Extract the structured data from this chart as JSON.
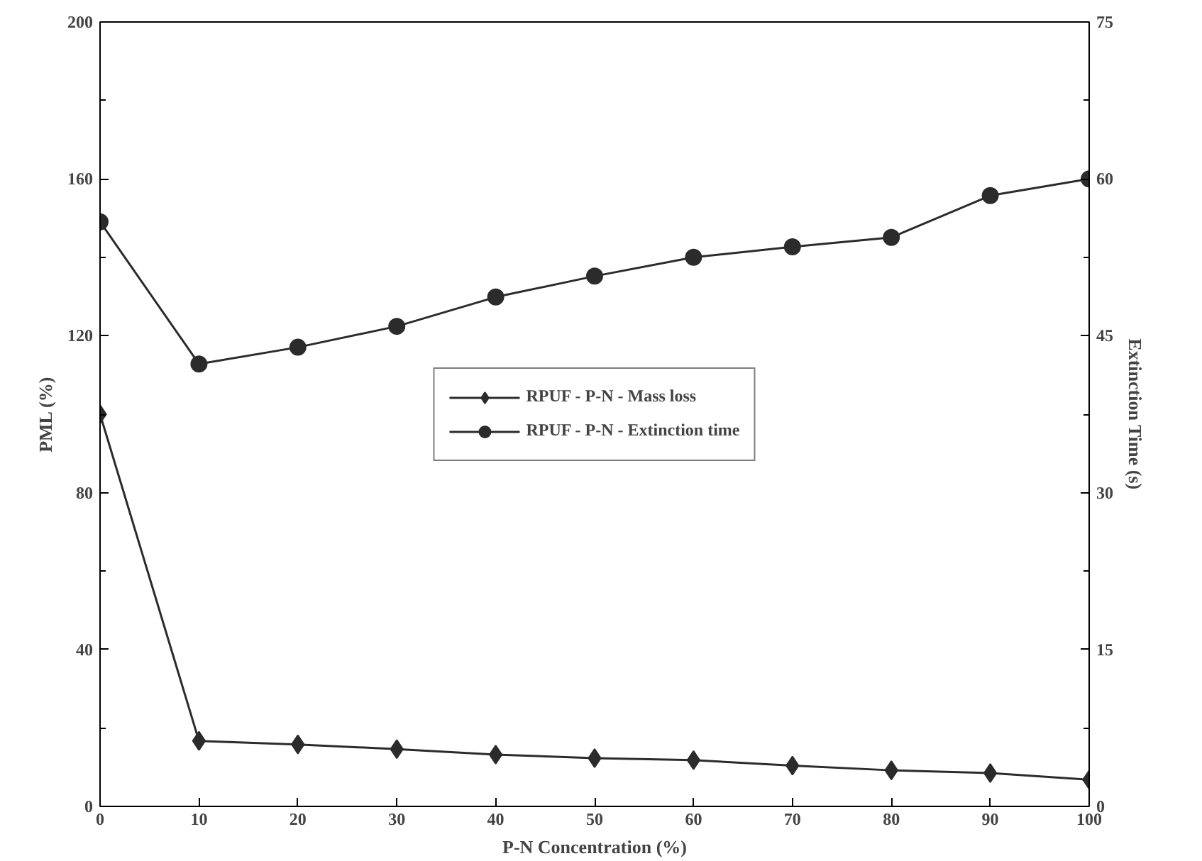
{
  "chart_data": {
    "type": "line",
    "xlabel": "P-N Concentration (%)",
    "ylabel": "PML (%)",
    "y2label": "Extinction Time (s)",
    "x": [
      0,
      10,
      20,
      30,
      40,
      50,
      60,
      70,
      80,
      90,
      100
    ],
    "xlim": [
      0,
      100
    ],
    "xticks": [
      0,
      10,
      20,
      30,
      40,
      50,
      60,
      70,
      80,
      90,
      100
    ],
    "ylim": [
      0,
      200
    ],
    "yticks": [
      0,
      40,
      80,
      120,
      160,
      200
    ],
    "y2lim": [
      0,
      75
    ],
    "y2ticks": [
      0,
      15,
      30,
      45,
      60,
      75
    ],
    "grid": false,
    "legend": "center",
    "line_style": "solid",
    "series": [
      {
        "name": "RPUF - P-N - Mass loss",
        "color": "#2b2b2b",
        "marker": "diamond",
        "values": [
          100,
          16.7,
          15.8,
          14.6,
          13.2,
          12.3,
          11.8,
          10.4,
          9.2,
          8.5,
          6.8
        ]
      },
      {
        "name": "RPUF - P-N - Extinction time",
        "color": "#2b2b2b",
        "marker": "circle",
        "axis": "y2",
        "values": [
          55.9,
          42.3,
          43.9,
          45.9,
          48.7,
          50.7,
          52.5,
          53.5,
          54.4,
          58.4,
          60.0
        ]
      }
    ]
  }
}
